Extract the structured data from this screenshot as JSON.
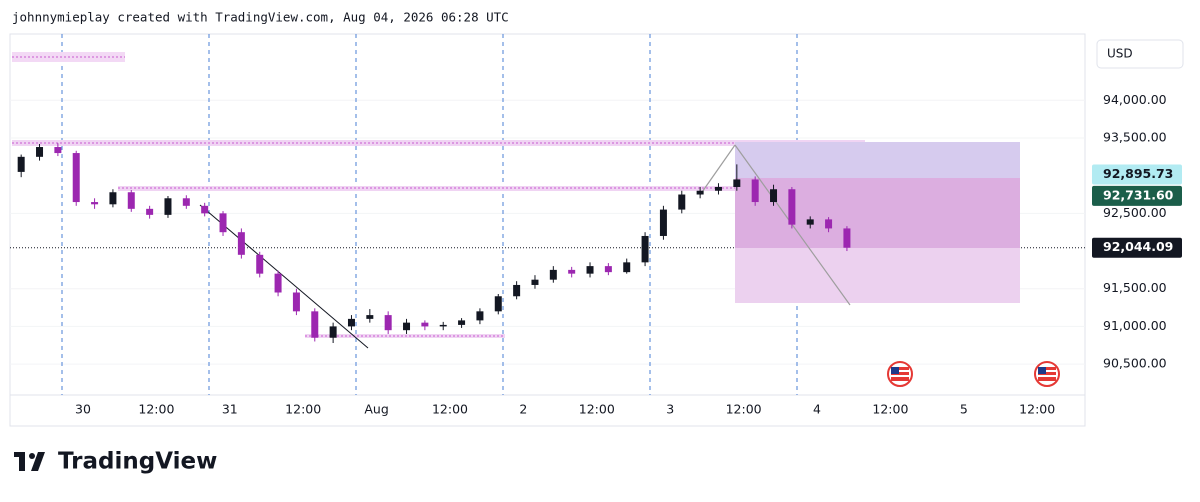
{
  "chart_data": {
    "type": "candlestick",
    "title": "johnnymieplay created with TradingView.com, Aug 04, 2026 06:28 UTC",
    "currency": "USD",
    "brand": "TradingView",
    "up_color": "#131722",
    "down_color": "#9c27b0",
    "ylim": [
      90090,
      94800
    ],
    "yticks": [
      {
        "value": 94000,
        "label": "94,000.00"
      },
      {
        "value": 93500,
        "label": "93,500.00"
      },
      {
        "value": 92500,
        "label": "92,500.00"
      },
      {
        "value": 91500,
        "label": "91,500.00"
      },
      {
        "value": 91000,
        "label": "91,000.00"
      },
      {
        "value": 90500,
        "label": "90,500.00"
      }
    ],
    "xticks": [
      "30",
      "12:00",
      "31",
      "12:00",
      "Aug",
      "12:00",
      "2",
      "12:00",
      "3",
      "12:00",
      "4",
      "12:00",
      "5",
      "12:00"
    ],
    "open": [
      93050,
      93250,
      93380,
      93300,
      92650,
      92620,
      92780,
      92560,
      92480,
      92700,
      92600,
      92500,
      92250,
      91950,
      91700,
      91450,
      91200,
      90850,
      91000,
      91100,
      91150,
      90950,
      91050,
      91000,
      91020,
      91080,
      91200,
      91400,
      91550,
      91620,
      91750,
      91700,
      91800,
      91720,
      91850,
      92200,
      92550,
      92750,
      92800,
      92850,
      92950,
      92650,
      92820,
      92350,
      92420,
      92300
    ],
    "high": [
      93280,
      93420,
      93430,
      93330,
      92700,
      92820,
      92810,
      92600,
      92730,
      92740,
      92640,
      92530,
      92300,
      91990,
      91740,
      91500,
      91240,
      91050,
      91150,
      91230,
      91200,
      91100,
      91080,
      91060,
      91110,
      91240,
      91430,
      91600,
      91680,
      91800,
      91790,
      91850,
      91840,
      91900,
      92250,
      92600,
      92800,
      92850,
      92900,
      93150,
      92990,
      92880,
      92850,
      92460,
      92450,
      92330
    ],
    "low": [
      92980,
      93200,
      93260,
      92600,
      92560,
      92580,
      92520,
      92430,
      92440,
      92560,
      92460,
      92200,
      91900,
      91650,
      91400,
      91150,
      90800,
      90780,
      90950,
      91050,
      90900,
      90900,
      90950,
      90950,
      90980,
      91030,
      91160,
      91360,
      91500,
      91580,
      91650,
      91650,
      91680,
      91700,
      91800,
      92150,
      92500,
      92700,
      92750,
      92800,
      92600,
      92600,
      92300,
      92300,
      92250,
      92000
    ],
    "close": [
      93250,
      93380,
      93300,
      92650,
      92620,
      92780,
      92560,
      92480,
      92700,
      92600,
      92500,
      92250,
      91950,
      91700,
      91450,
      91200,
      90850,
      91000,
      91100,
      91150,
      90950,
      91050,
      91000,
      91020,
      91080,
      91200,
      91400,
      91550,
      91620,
      91750,
      91700,
      91800,
      91720,
      91850,
      92200,
      92550,
      92750,
      92800,
      92850,
      92950,
      92650,
      92820,
      92350,
      92420,
      92300,
      92044.09
    ],
    "price_labels": [
      {
        "value": 92895.73,
        "label": "92,895.73",
        "color": "#b2ebf2",
        "text_color": "#131722"
      },
      {
        "value": 92731.6,
        "label": "92,731.60",
        "color": "#1b5e4a",
        "text_color": "#ffffff"
      },
      {
        "value": 92044.09,
        "label": "92,044.09",
        "color": "#131722",
        "text_color": "#ffffff"
      }
    ]
  }
}
